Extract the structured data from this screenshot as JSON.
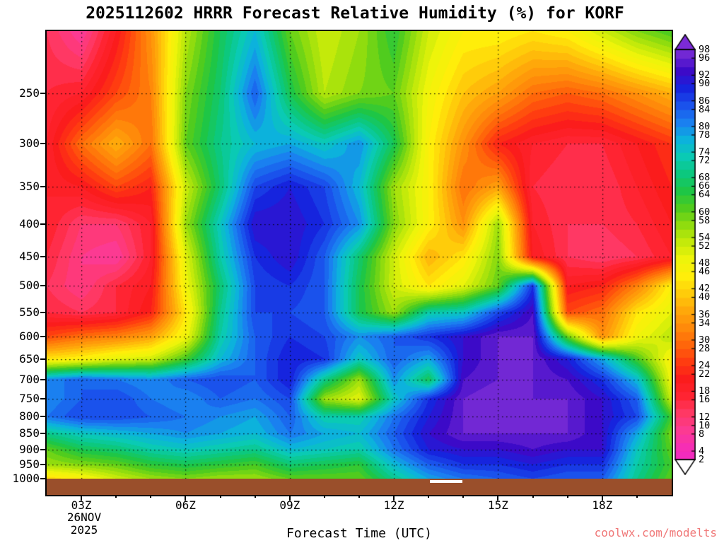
{
  "title": "2025112602 HRRR Forecast Relative Humidity (%) for KORF",
  "watermark": "coolwx.com/modelts",
  "axes": {
    "x_label": "Forecast Time (UTC)",
    "x_tick_labels": [
      "03Z",
      "06Z",
      "09Z",
      "12Z",
      "15Z",
      "18Z"
    ],
    "x_tick_hours": [
      3,
      6,
      9,
      12,
      15,
      18
    ],
    "date_line1": "26NOV",
    "date_line2": "2025",
    "y_tick_labels": [
      "250",
      "300",
      "350",
      "400",
      "450",
      "500",
      "550",
      "600",
      "650",
      "700",
      "750",
      "800",
      "850",
      "900",
      "950",
      "1000"
    ],
    "y_tick_values": [
      250,
      300,
      350,
      400,
      450,
      500,
      550,
      600,
      650,
      700,
      750,
      800,
      850,
      900,
      950,
      1000
    ]
  },
  "colorbar": {
    "min": 2,
    "max": 98,
    "step": 2,
    "labels": [
      "98",
      "96",
      "92",
      "90",
      "86",
      "84",
      "80",
      "78",
      "74",
      "72",
      "68",
      "66",
      "64",
      "60",
      "58",
      "54",
      "52",
      "48",
      "46",
      "42",
      "40",
      "36",
      "34",
      "30",
      "28",
      "24",
      "22",
      "18",
      "16",
      "12",
      "10",
      "8",
      "4",
      "2"
    ],
    "label_values": [
      98,
      96,
      92,
      90,
      86,
      84,
      80,
      78,
      74,
      72,
      68,
      66,
      64,
      60,
      58,
      54,
      52,
      48,
      46,
      42,
      40,
      36,
      34,
      30,
      28,
      24,
      22,
      18,
      16,
      12,
      10,
      8,
      4,
      2
    ],
    "top_arrow_color": "#7C2AD8",
    "bottom_arrow_color": "#FFFFFF"
  },
  "chart_data": {
    "type": "heatmap",
    "title": "2025112602 HRRR Forecast Relative Humidity (%) for KORF",
    "xlabel": "Forecast Time (UTC)",
    "ylabel": "",
    "units": "%",
    "x_range_hours": [
      2,
      20
    ],
    "y_range_hpa": [
      200,
      1000
    ],
    "y_scale": "log",
    "x_hours": [
      2,
      3,
      4,
      5,
      6,
      7,
      8,
      9,
      10,
      11,
      12,
      13,
      14,
      15,
      16,
      17,
      18,
      19,
      20
    ],
    "pressure_levels": [
      200,
      250,
      300,
      350,
      400,
      450,
      500,
      550,
      600,
      650,
      700,
      750,
      800,
      850,
      900,
      950,
      1000
    ],
    "values": [
      [
        14,
        8,
        20,
        34,
        54,
        66,
        76,
        60,
        52,
        56,
        64,
        52,
        46,
        46,
        44,
        46,
        52,
        58,
        62
      ],
      [
        16,
        18,
        26,
        32,
        58,
        68,
        84,
        66,
        54,
        58,
        60,
        48,
        40,
        36,
        30,
        28,
        30,
        34,
        38
      ],
      [
        18,
        30,
        38,
        30,
        60,
        70,
        76,
        78,
        74,
        80,
        66,
        46,
        34,
        22,
        18,
        16,
        16,
        20,
        24
      ],
      [
        18,
        20,
        26,
        22,
        52,
        68,
        86,
        90,
        86,
        76,
        56,
        46,
        30,
        36,
        16,
        14,
        14,
        18,
        22
      ],
      [
        18,
        12,
        12,
        18,
        56,
        74,
        92,
        92,
        88,
        80,
        58,
        46,
        34,
        56,
        18,
        14,
        14,
        16,
        20
      ],
      [
        16,
        10,
        8,
        18,
        50,
        72,
        88,
        92,
        84,
        68,
        52,
        38,
        44,
        58,
        20,
        14,
        12,
        14,
        18
      ],
      [
        14,
        10,
        16,
        20,
        48,
        68,
        86,
        88,
        84,
        66,
        52,
        44,
        50,
        60,
        88,
        20,
        22,
        32,
        46
      ],
      [
        16,
        14,
        16,
        22,
        44,
        70,
        86,
        86,
        84,
        66,
        56,
        72,
        74,
        86,
        94,
        26,
        30,
        44,
        50
      ],
      [
        26,
        30,
        32,
        36,
        48,
        72,
        84,
        88,
        86,
        80,
        84,
        88,
        92,
        96,
        96,
        60,
        34,
        48,
        54
      ],
      [
        44,
        46,
        50,
        52,
        62,
        76,
        84,
        90,
        88,
        74,
        84,
        78,
        92,
        96,
        96,
        90,
        78,
        62,
        46
      ],
      [
        80,
        84,
        82,
        80,
        84,
        86,
        84,
        90,
        70,
        56,
        80,
        66,
        94,
        96,
        96,
        94,
        88,
        76,
        48
      ],
      [
        80,
        84,
        86,
        82,
        80,
        84,
        82,
        86,
        56,
        50,
        74,
        88,
        96,
        98,
        96,
        96,
        92,
        84,
        52
      ],
      [
        82,
        86,
        86,
        84,
        82,
        80,
        78,
        84,
        72,
        72,
        82,
        90,
        96,
        98,
        96,
        96,
        92,
        86,
        62
      ],
      [
        70,
        74,
        76,
        78,
        80,
        78,
        76,
        82,
        78,
        76,
        84,
        92,
        96,
        96,
        96,
        96,
        92,
        78,
        58
      ],
      [
        60,
        66,
        68,
        72,
        74,
        72,
        70,
        76,
        74,
        72,
        82,
        90,
        92,
        92,
        94,
        92,
        92,
        74,
        60
      ],
      [
        56,
        58,
        60,
        64,
        66,
        64,
        62,
        68,
        66,
        64,
        76,
        84,
        88,
        88,
        90,
        88,
        88,
        72,
        62
      ],
      [
        42,
        46,
        52,
        56,
        58,
        56,
        56,
        60,
        60,
        60,
        70,
        78,
        82,
        84,
        86,
        84,
        84,
        70,
        60
      ]
    ],
    "colormap": [
      [
        1,
        "#EE28C8"
      ],
      [
        5,
        "#F62EB4"
      ],
      [
        9,
        "#FC3A92"
      ],
      [
        13,
        "#FF3864"
      ],
      [
        17,
        "#FF2432"
      ],
      [
        21,
        "#FB1C1C"
      ],
      [
        25,
        "#FF3C10"
      ],
      [
        29,
        "#FF660A"
      ],
      [
        33,
        "#FF8A0A"
      ],
      [
        37,
        "#FFA80A"
      ],
      [
        41,
        "#FFCC0A"
      ],
      [
        45,
        "#FFEE0A"
      ],
      [
        49,
        "#EEF40A"
      ],
      [
        53,
        "#C4EA0A"
      ],
      [
        57,
        "#90DC0E"
      ],
      [
        61,
        "#50CC1E"
      ],
      [
        65,
        "#1EC646"
      ],
      [
        69,
        "#0CC87E"
      ],
      [
        73,
        "#0ACAB4"
      ],
      [
        77,
        "#0CB2DC"
      ],
      [
        81,
        "#1A80F0"
      ],
      [
        85,
        "#1A52EC"
      ],
      [
        89,
        "#1624DE"
      ],
      [
        93,
        "#3C0AC8"
      ],
      [
        97,
        "#7228D4"
      ],
      [
        99,
        "#8A32DC"
      ]
    ],
    "ground_color": "#9A4F2B"
  }
}
